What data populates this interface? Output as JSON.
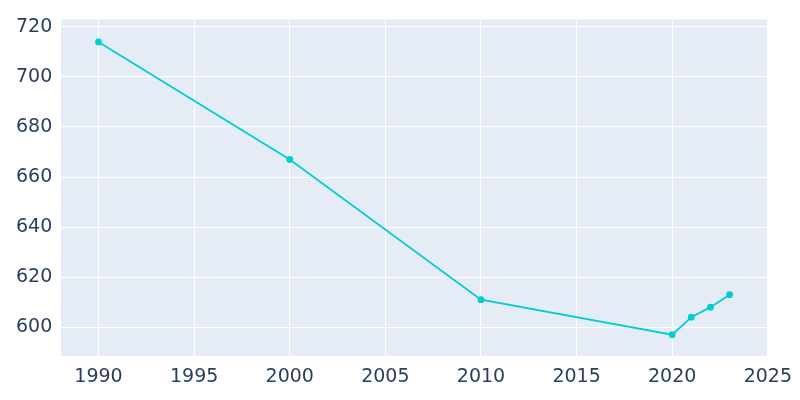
{
  "chart_data": {
    "type": "line",
    "x": [
      1990,
      2000,
      2010,
      2020,
      2021,
      2022,
      2023
    ],
    "values": [
      714,
      667,
      611,
      597,
      604,
      608,
      613
    ],
    "color": "#00CED1",
    "marker": "circle",
    "xlim": [
      1988,
      2025
    ],
    "xticks": [
      1990,
      1995,
      2000,
      2005,
      2010,
      2015,
      2020,
      2025
    ],
    "ylim": [
      588,
      723
    ],
    "yticks": [
      600,
      620,
      640,
      660,
      680,
      700,
      720
    ],
    "grid": true
  }
}
